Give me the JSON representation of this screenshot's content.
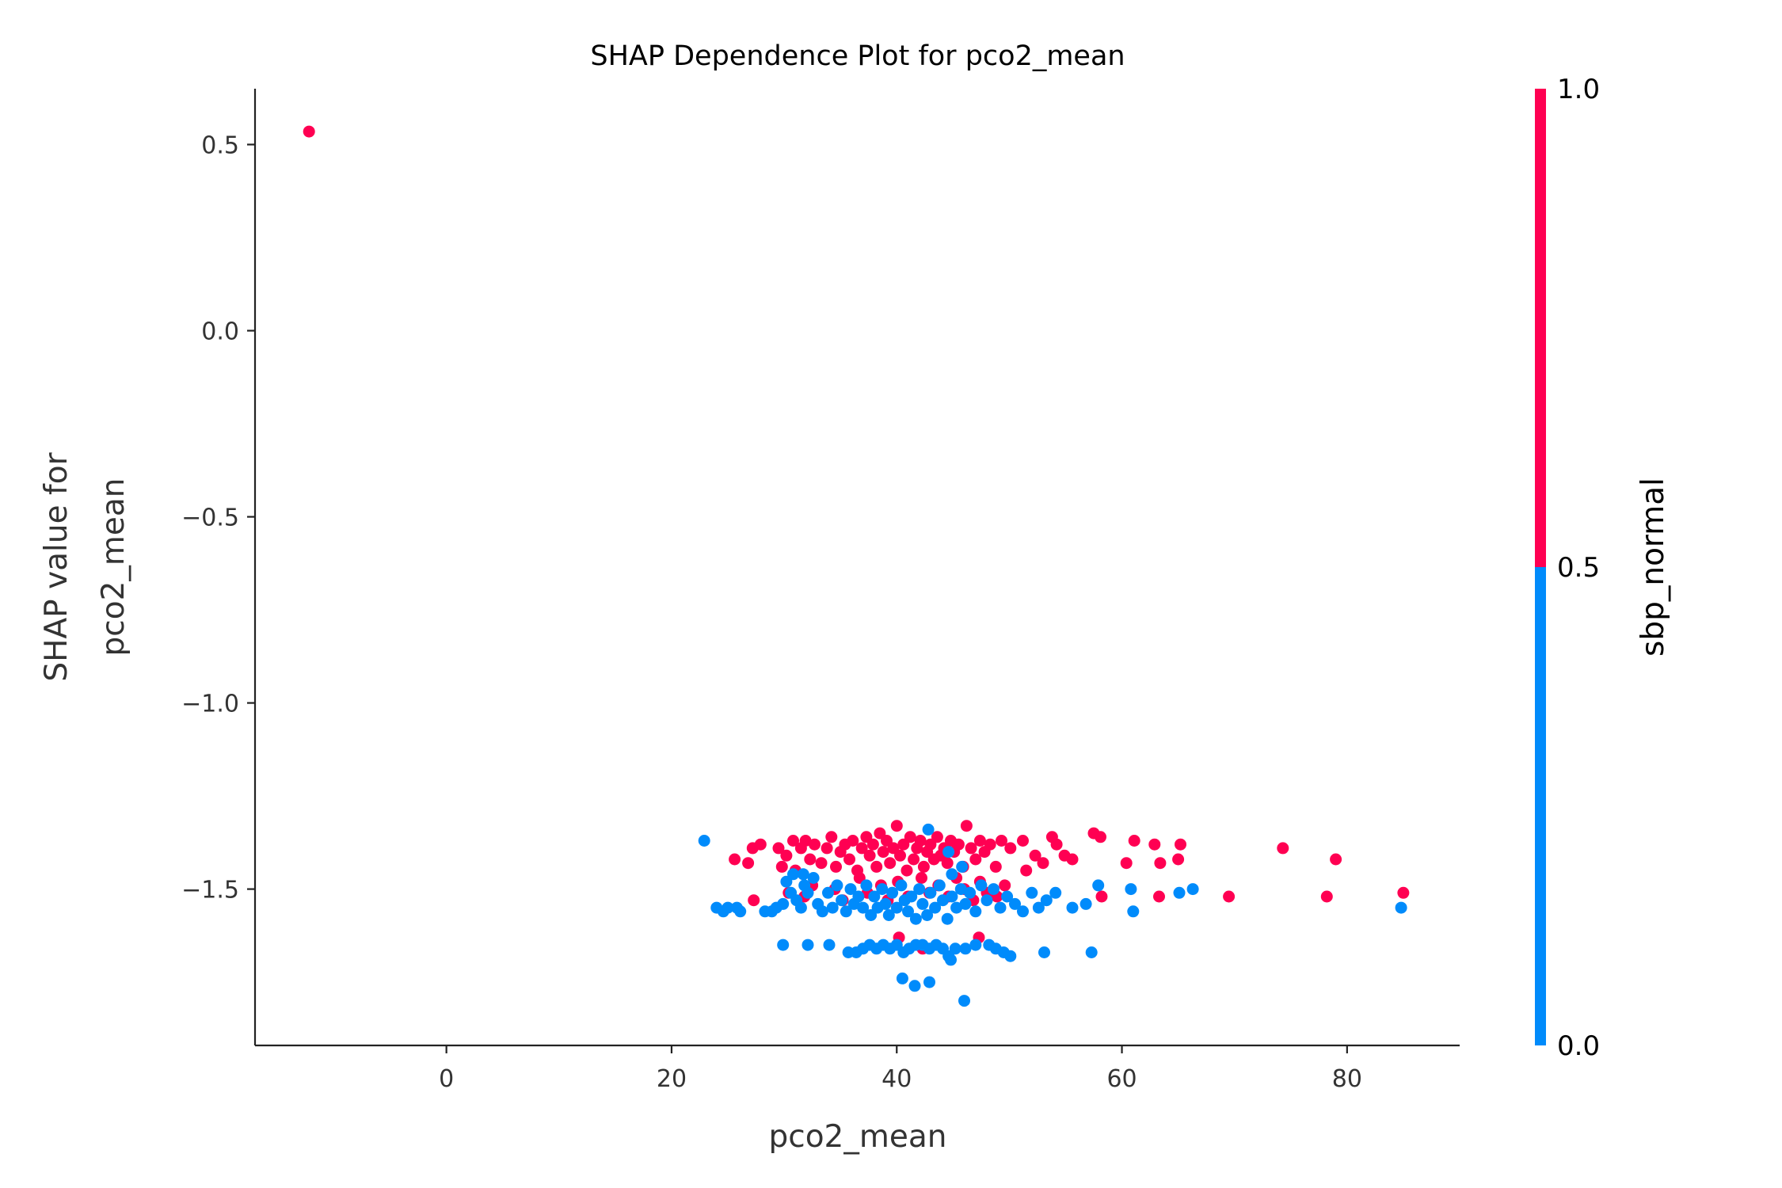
{
  "chart_data": {
    "type": "scatter",
    "title": "SHAP Dependence Plot for pco2_mean",
    "xlabel": "pco2_mean",
    "ylabel_lines": [
      "SHAP value for",
      "pco2_mean"
    ],
    "xlim": [
      -17,
      90
    ],
    "ylim": [
      -1.92,
      0.65
    ],
    "xticks": [
      0,
      20,
      40,
      60,
      80
    ],
    "xtick_labels": [
      "0",
      "20",
      "40",
      "60",
      "80"
    ],
    "yticks": [
      0.5,
      0.0,
      -0.5,
      -1.0,
      -1.5
    ],
    "ytick_labels": [
      "0.5",
      "0.0",
      "−0.5",
      "−1.0",
      "−1.5"
    ],
    "grid": false,
    "colorbar": {
      "label": "sbp_normal",
      "range": [
        0.0,
        1.0
      ],
      "ticks": [
        0.0,
        0.5,
        1.0
      ],
      "tick_labels": [
        "0.0",
        "0.5",
        "1.0"
      ],
      "low_color": "#008bfb",
      "high_color": "#ff0052"
    },
    "series": [
      {
        "color": "#ff0052",
        "points": [
          [
            -12.2,
            0.535
          ],
          [
            25.6,
            -1.42
          ],
          [
            26.8,
            -1.43
          ],
          [
            27.2,
            -1.39
          ],
          [
            27.9,
            -1.38
          ],
          [
            29.5,
            -1.39
          ],
          [
            29.8,
            -1.44
          ],
          [
            30.2,
            -1.41
          ],
          [
            30.8,
            -1.37
          ],
          [
            31.0,
            -1.45
          ],
          [
            31.5,
            -1.39
          ],
          [
            31.9,
            -1.37
          ],
          [
            32.3,
            -1.42
          ],
          [
            32.7,
            -1.38
          ],
          [
            33.3,
            -1.43
          ],
          [
            33.8,
            -1.39
          ],
          [
            34.2,
            -1.36
          ],
          [
            34.6,
            -1.44
          ],
          [
            35.0,
            -1.4
          ],
          [
            35.4,
            -1.38
          ],
          [
            35.8,
            -1.42
          ],
          [
            36.1,
            -1.37
          ],
          [
            36.5,
            -1.45
          ],
          [
            36.9,
            -1.39
          ],
          [
            37.3,
            -1.36
          ],
          [
            37.6,
            -1.41
          ],
          [
            37.9,
            -1.38
          ],
          [
            38.2,
            -1.44
          ],
          [
            38.5,
            -1.35
          ],
          [
            38.8,
            -1.4
          ],
          [
            39.1,
            -1.37
          ],
          [
            39.4,
            -1.43
          ],
          [
            39.7,
            -1.39
          ],
          [
            40.0,
            -1.33
          ],
          [
            40.3,
            -1.41
          ],
          [
            40.6,
            -1.38
          ],
          [
            40.9,
            -1.45
          ],
          [
            41.2,
            -1.36
          ],
          [
            41.5,
            -1.42
          ],
          [
            41.8,
            -1.39
          ],
          [
            42.1,
            -1.37
          ],
          [
            42.4,
            -1.44
          ],
          [
            42.7,
            -1.4
          ],
          [
            43.0,
            -1.38
          ],
          [
            43.3,
            -1.42
          ],
          [
            43.6,
            -1.36
          ],
          [
            43.9,
            -1.41
          ],
          [
            44.2,
            -1.39
          ],
          [
            44.5,
            -1.43
          ],
          [
            44.8,
            -1.37
          ],
          [
            45.1,
            -1.4
          ],
          [
            45.5,
            -1.38
          ],
          [
            45.9,
            -1.44
          ],
          [
            46.2,
            -1.33
          ],
          [
            46.6,
            -1.39
          ],
          [
            47.0,
            -1.42
          ],
          [
            47.4,
            -1.37
          ],
          [
            47.8,
            -1.4
          ],
          [
            48.3,
            -1.38
          ],
          [
            48.8,
            -1.44
          ],
          [
            49.3,
            -1.37
          ],
          [
            50.1,
            -1.39
          ],
          [
            51.2,
            -1.37
          ],
          [
            51.5,
            -1.45
          ],
          [
            52.3,
            -1.41
          ],
          [
            53.0,
            -1.43
          ],
          [
            53.8,
            -1.36
          ],
          [
            54.2,
            -1.38
          ],
          [
            54.9,
            -1.41
          ],
          [
            55.6,
            -1.42
          ],
          [
            57.5,
            -1.35
          ],
          [
            58.1,
            -1.36
          ],
          [
            58.2,
            -1.52
          ],
          [
            60.4,
            -1.43
          ],
          [
            61.1,
            -1.37
          ],
          [
            62.9,
            -1.38
          ],
          [
            63.4,
            -1.43
          ],
          [
            63.3,
            -1.52
          ],
          [
            65.0,
            -1.42
          ],
          [
            65.2,
            -1.38
          ],
          [
            69.5,
            -1.52
          ],
          [
            74.3,
            -1.39
          ],
          [
            78.2,
            -1.52
          ],
          [
            79.0,
            -1.42
          ],
          [
            85.0,
            -1.51
          ],
          [
            27.3,
            -1.53
          ],
          [
            31.8,
            -1.52
          ],
          [
            34.5,
            -1.5
          ],
          [
            35.2,
            -1.53
          ],
          [
            36.7,
            -1.47
          ],
          [
            37.4,
            -1.51
          ],
          [
            38.6,
            -1.49
          ],
          [
            39.2,
            -1.53
          ],
          [
            40.1,
            -1.48
          ],
          [
            41.0,
            -1.52
          ],
          [
            42.2,
            -1.47
          ],
          [
            42.9,
            -1.51
          ],
          [
            43.7,
            -1.49
          ],
          [
            44.6,
            -1.52
          ],
          [
            45.3,
            -1.47
          ],
          [
            46.0,
            -1.5
          ],
          [
            46.8,
            -1.53
          ],
          [
            47.4,
            -1.48
          ],
          [
            48.0,
            -1.51
          ],
          [
            48.9,
            -1.52
          ],
          [
            49.6,
            -1.49
          ],
          [
            30.4,
            -1.51
          ],
          [
            32.5,
            -1.49
          ],
          [
            40.2,
            -1.63
          ],
          [
            42.3,
            -1.66
          ],
          [
            47.3,
            -1.63
          ]
        ]
      },
      {
        "color": "#008bfb",
        "points": [
          [
            22.9,
            -1.37
          ],
          [
            24.0,
            -1.55
          ],
          [
            24.6,
            -1.56
          ],
          [
            25.0,
            -1.55
          ],
          [
            25.8,
            -1.55
          ],
          [
            26.1,
            -1.56
          ],
          [
            28.3,
            -1.56
          ],
          [
            28.9,
            -1.56
          ],
          [
            29.3,
            -1.55
          ],
          [
            29.9,
            -1.54
          ],
          [
            30.2,
            -1.48
          ],
          [
            30.6,
            -1.51
          ],
          [
            31.1,
            -1.53
          ],
          [
            31.5,
            -1.55
          ],
          [
            31.8,
            -1.49
          ],
          [
            32.1,
            -1.51
          ],
          [
            32.6,
            -1.47
          ],
          [
            33.0,
            -1.54
          ],
          [
            33.4,
            -1.56
          ],
          [
            33.9,
            -1.51
          ],
          [
            34.3,
            -1.55
          ],
          [
            34.7,
            -1.49
          ],
          [
            35.1,
            -1.53
          ],
          [
            35.5,
            -1.56
          ],
          [
            35.9,
            -1.5
          ],
          [
            36.2,
            -1.54
          ],
          [
            36.6,
            -1.52
          ],
          [
            37.0,
            -1.55
          ],
          [
            37.3,
            -1.49
          ],
          [
            37.7,
            -1.57
          ],
          [
            38.0,
            -1.52
          ],
          [
            38.3,
            -1.55
          ],
          [
            38.7,
            -1.5
          ],
          [
            39.0,
            -1.54
          ],
          [
            39.3,
            -1.57
          ],
          [
            39.6,
            -1.51
          ],
          [
            40.0,
            -1.55
          ],
          [
            40.4,
            -1.49
          ],
          [
            40.7,
            -1.53
          ],
          [
            41.0,
            -1.56
          ],
          [
            41.3,
            -1.52
          ],
          [
            41.7,
            -1.58
          ],
          [
            42.0,
            -1.5
          ],
          [
            42.3,
            -1.54
          ],
          [
            42.7,
            -1.57
          ],
          [
            43.0,
            -1.51
          ],
          [
            43.4,
            -1.55
          ],
          [
            43.8,
            -1.49
          ],
          [
            44.1,
            -1.53
          ],
          [
            44.5,
            -1.58
          ],
          [
            44.9,
            -1.52
          ],
          [
            45.3,
            -1.55
          ],
          [
            45.7,
            -1.5
          ],
          [
            46.1,
            -1.54
          ],
          [
            46.5,
            -1.51
          ],
          [
            47.0,
            -1.56
          ],
          [
            47.5,
            -1.49
          ],
          [
            48.0,
            -1.53
          ],
          [
            48.6,
            -1.5
          ],
          [
            49.2,
            -1.55
          ],
          [
            49.8,
            -1.52
          ],
          [
            50.5,
            -1.54
          ],
          [
            51.2,
            -1.56
          ],
          [
            52.0,
            -1.51
          ],
          [
            52.6,
            -1.55
          ],
          [
            53.3,
            -1.53
          ],
          [
            54.1,
            -1.51
          ],
          [
            55.6,
            -1.55
          ],
          [
            56.8,
            -1.54
          ],
          [
            57.9,
            -1.49
          ],
          [
            60.8,
            -1.5
          ],
          [
            61.0,
            -1.56
          ],
          [
            65.1,
            -1.51
          ],
          [
            66.3,
            -1.5
          ],
          [
            84.8,
            -1.55
          ],
          [
            44.9,
            -1.46
          ],
          [
            45.8,
            -1.44
          ],
          [
            44.6,
            -1.4
          ],
          [
            42.8,
            -1.34
          ],
          [
            30.8,
            -1.46
          ],
          [
            31.7,
            -1.46
          ],
          [
            29.9,
            -1.65
          ],
          [
            32.1,
            -1.65
          ],
          [
            34.0,
            -1.65
          ],
          [
            35.7,
            -1.67
          ],
          [
            36.4,
            -1.67
          ],
          [
            37.0,
            -1.66
          ],
          [
            37.6,
            -1.65
          ],
          [
            38.2,
            -1.66
          ],
          [
            38.8,
            -1.65
          ],
          [
            39.4,
            -1.66
          ],
          [
            40.0,
            -1.65
          ],
          [
            40.6,
            -1.67
          ],
          [
            41.1,
            -1.66
          ],
          [
            41.7,
            -1.65
          ],
          [
            42.3,
            -1.65
          ],
          [
            42.9,
            -1.66
          ],
          [
            43.5,
            -1.65
          ],
          [
            44.1,
            -1.66
          ],
          [
            44.6,
            -1.68
          ],
          [
            45.2,
            -1.66
          ],
          [
            46.1,
            -1.66
          ],
          [
            47.0,
            -1.65
          ],
          [
            48.2,
            -1.65
          ],
          [
            48.8,
            -1.66
          ],
          [
            49.5,
            -1.67
          ],
          [
            50.1,
            -1.68
          ],
          [
            53.1,
            -1.67
          ],
          [
            57.3,
            -1.67
          ],
          [
            40.5,
            -1.74
          ],
          [
            41.6,
            -1.76
          ],
          [
            42.9,
            -1.75
          ],
          [
            46.0,
            -1.8
          ],
          [
            44.8,
            -1.69
          ]
        ]
      }
    ]
  }
}
